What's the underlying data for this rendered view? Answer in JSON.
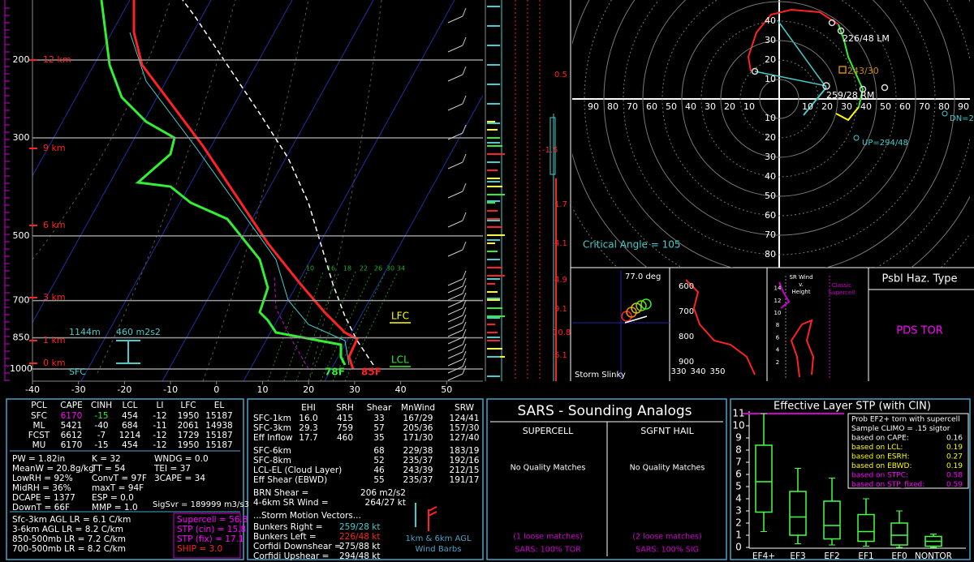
{
  "skewt": {
    "pressure_labels": [
      200,
      300,
      500,
      700,
      850,
      1000
    ],
    "height_labels": [
      "12 km",
      "9 km",
      "6 km",
      "3 km",
      "1 km",
      "0 km"
    ],
    "temperature_ticks": [
      -40,
      -30,
      -20,
      -10,
      0,
      10,
      20,
      30,
      40,
      50
    ],
    "mixing_ratio_labels": [
      10,
      16,
      18,
      22,
      26,
      30,
      34
    ],
    "sfc_label": "SFC",
    "lfc_label": "LFC",
    "lcl_label": "LCL",
    "inflow_depth": "1144m",
    "inflow_srh": "460 m2s2",
    "sfc_dewpoint": "78F",
    "sfc_temperature": "85F",
    "inset_labels": [
      "0.5",
      "-1.5",
      "1.7",
      "4.1",
      "4.9",
      "9.1",
      "10.8",
      "6.1"
    ]
  },
  "hodograph": {
    "x_ticks_left": [
      90,
      80,
      70,
      60,
      50,
      40,
      30,
      20,
      10
    ],
    "x_ticks_right": [
      10,
      20,
      30,
      40,
      50,
      60,
      70,
      80,
      90
    ],
    "y_ticks_up": [
      40,
      30,
      20,
      10
    ],
    "y_ticks_down": [
      10,
      20,
      30,
      40,
      50,
      60,
      70,
      80
    ],
    "left_mover": "226/48 LM",
    "mean_wind": "243/30",
    "right_mover": "259/28 RM",
    "upshear": "UP=294/48",
    "downshear": "DN=2",
    "critical_angle": "Critical Angle = 105"
  },
  "slinky": {
    "angle": "77.0 deg",
    "title": "Storm Slinky"
  },
  "theta_plot": {
    "pressure_ticks": [
      600,
      700,
      800,
      900
    ],
    "theta_ticks": [
      330,
      340,
      350
    ]
  },
  "sr_wind": {
    "title": [
      "SR Wind",
      "v.",
      "Height"
    ],
    "reference": [
      "Classic",
      "Supercell"
    ],
    "height_ticks": [
      2,
      4,
      6,
      8,
      10,
      12,
      14
    ]
  },
  "hazard": {
    "title": "Psbl Haz. Type",
    "type": "PDS TOR"
  },
  "thermo": {
    "header": [
      "PCL",
      "CAPE",
      "CINH",
      "LCL",
      "LI",
      "LFC",
      "EL"
    ],
    "rows": [
      [
        "SFC",
        "6170",
        "-15",
        "454",
        "-12",
        "1950",
        "15187"
      ],
      [
        "ML",
        "5421",
        "-40",
        "684",
        "-11",
        "2061",
        "14938"
      ],
      [
        "FCST",
        "6612",
        "-7",
        "1214",
        "-12",
        "1729",
        "15187"
      ],
      [
        "MU",
        "6170",
        "-15",
        "454",
        "-12",
        "1950",
        "15187"
      ]
    ],
    "indices_left": [
      "PW = 1.82in",
      "MeanW = 20.8g/kg",
      "LowRH = 92%",
      "MidRH = 36%",
      "DCAPE = 1377",
      "DownT = 66F"
    ],
    "indices_mid": [
      "K = 32",
      "TT = 54",
      "ConvT = 97F",
      "maxT = 94F",
      "ESP = 0.0",
      "MMP = 1.0"
    ],
    "indices_right": [
      "WNDG = 0.0",
      "TEI = 37",
      "3CAPE = 34"
    ],
    "sigsvr": "SigSvr = 189999 m3/s3",
    "lapse_rates": [
      "Sfc-3km AGL LR = 6.1 C/km",
      "3-6km AGL LR = 8.2 C/km",
      "850-500mb LR = 7.2 C/km",
      "700-500mb LR = 8.2 C/km"
    ],
    "composites": [
      "Supercell = 56.8",
      "STP (cin) = 15.8",
      "STP (fix) = 17.1",
      "SHIP = 3.0"
    ]
  },
  "kinematics": {
    "header": [
      "EHI",
      "SRH",
      "Shear",
      "MnWind",
      "SRW"
    ],
    "layers": [
      [
        "SFC-1km",
        "16.0",
        "415",
        "33",
        "167/29",
        "124/41"
      ],
      [
        "SFC-3km",
        "29.3",
        "759",
        "57",
        "205/36",
        "157/30"
      ],
      [
        "Eff Inflow",
        "17.7",
        "460",
        "35",
        "171/30",
        "127/40"
      ]
    ],
    "deep_layers": [
      [
        "SFC-6km",
        "68",
        "229/38",
        "183/19"
      ],
      [
        "SFC-8km",
        "52",
        "235/37",
        "192/16"
      ],
      [
        "LCL-EL (Cloud Layer)",
        "46",
        "243/39",
        "212/15"
      ],
      [
        "Eff Shear (EBWD)",
        "55",
        "235/37",
        "191/17"
      ]
    ],
    "brn_shear": [
      "BRN Shear =",
      "206 m2/s2"
    ],
    "sr_wind_4_6km": [
      "4-6km SR Wind =",
      "264/27 kt"
    ],
    "storm_motion_title": "...Storm Motion Vectors...",
    "storm_motions": [
      [
        "Bunkers Right =",
        "259/28 kt"
      ],
      [
        "Bunkers Left =",
        "226/48 kt"
      ],
      [
        "Corfidi Downshear =",
        "275/88 kt"
      ],
      [
        "Corfidi Upshear =",
        "294/48 kt"
      ]
    ],
    "barb_caption": [
      "1km & 6km AGL",
      "Wind Barbs"
    ]
  },
  "sars": {
    "title": "SARS - Sounding Analogs",
    "supercell": {
      "title": "SUPERCELL",
      "quality": "No Quality Matches",
      "loose": "(1 loose matches)",
      "summary": "SARS: 100% TOR"
    },
    "hail": {
      "title": "SGFNT HAIL",
      "quality": "No Quality Matches",
      "loose": "(2 loose matches)",
      "summary": "SARS: 100% SIG"
    }
  },
  "stp": {
    "title": "Effective Layer STP (with CIN)",
    "yticks": [
      0,
      1,
      2,
      3,
      4,
      5,
      6,
      7,
      8,
      9,
      10,
      11
    ],
    "ylim": [
      0,
      11
    ],
    "categories": [
      "EF4+",
      "EF3",
      "EF2",
      "EF1",
      "EF0",
      "NONTOR"
    ],
    "boxes": [
      {
        "low": 1.3,
        "q1": 2.9,
        "median": 5.4,
        "q3": 8.4,
        "high": 11
      },
      {
        "low": 0.3,
        "q1": 1.0,
        "median": 2.5,
        "q3": 4.6,
        "high": 6.5
      },
      {
        "low": 0.2,
        "q1": 0.7,
        "median": 1.8,
        "q3": 3.8,
        "high": 5.7
      },
      {
        "low": 0.1,
        "q1": 0.5,
        "median": 1.3,
        "q3": 2.7,
        "high": 4.0
      },
      {
        "low": 0,
        "q1": 0.2,
        "median": 1.0,
        "q3": 2.0,
        "high": 3.0
      },
      {
        "low": 0,
        "q1": 0.1,
        "median": 0.5,
        "q3": 0.9,
        "high": 1.1
      }
    ],
    "legend_title": [
      "Prob EF2+ torn with supercell",
      "Sample CLIMO = .15 sigtor"
    ],
    "legend": [
      {
        "label": "based on CAPE:",
        "value": "0.16",
        "color": "#ffffff"
      },
      {
        "label": "based on LCL:",
        "value": "0.19",
        "color": "#ffff00"
      },
      {
        "label": "based on ESRH:",
        "value": "0.27",
        "color": "#ffff00"
      },
      {
        "label": "based on EBWD:",
        "value": "0.19",
        "color": "#ffff00"
      },
      {
        "label": "based on STPC:",
        "value": "0.58",
        "color": "#ff00ff"
      },
      {
        "label": "based on STP_fixed:",
        "value": "0.59",
        "color": "#ff00ff"
      }
    ]
  }
}
